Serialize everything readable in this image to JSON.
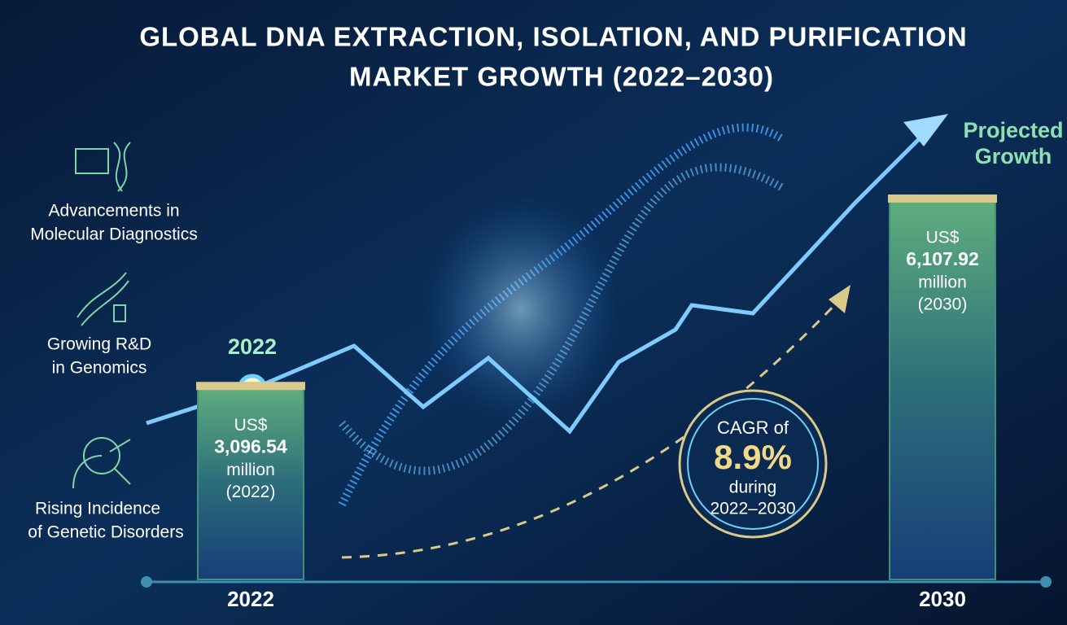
{
  "chart_data": {
    "type": "bar",
    "title": [
      "GLOBAL DNA EXTRACTION, ISOLATION, AND PURIFICATION",
      "MARKET GROWTH (2022–2030)"
    ],
    "categories": [
      "2022",
      "2030"
    ],
    "values": [
      3096.54,
      6107.92
    ],
    "value_labels": [
      "3,096.54",
      "6,107.92"
    ],
    "currency": "US$",
    "unit": "million",
    "period_labels": [
      "(2022)",
      "(2030)"
    ],
    "start_label": "2022",
    "projection_label": [
      "Projected",
      "Growth"
    ],
    "cagr": [
      "CAGR of",
      "8.9%",
      "during",
      "2022–2030"
    ],
    "drivers": [
      [
        "Advancements in",
        "Molecular Diagnostics"
      ],
      [
        "Growing R&D",
        "in Genomics"
      ],
      [
        "Rising Incidence",
        "of Genetic Disorders"
      ]
    ],
    "color": "#3f8f7a"
  }
}
